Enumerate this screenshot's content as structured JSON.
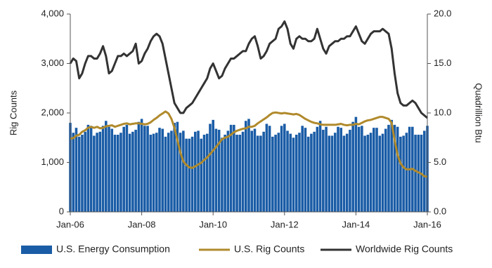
{
  "chart_data": {
    "type": "bar",
    "y_label": "Rig Counts",
    "y2_label": "Quadrillion Btu",
    "categories": [
      "Jan-06",
      null,
      null,
      null,
      null,
      null,
      null,
      null,
      null,
      null,
      null,
      null,
      null,
      null,
      null,
      null,
      null,
      null,
      null,
      null,
      null,
      null,
      null,
      null,
      "Jan-08",
      null,
      null,
      null,
      null,
      null,
      null,
      null,
      null,
      null,
      null,
      null,
      null,
      null,
      null,
      null,
      null,
      null,
      null,
      null,
      null,
      null,
      null,
      null,
      "Jan-10",
      null,
      null,
      null,
      null,
      null,
      null,
      null,
      null,
      null,
      null,
      null,
      null,
      null,
      null,
      null,
      null,
      null,
      null,
      null,
      null,
      null,
      null,
      null,
      "Jan-12",
      null,
      null,
      null,
      null,
      null,
      null,
      null,
      null,
      null,
      null,
      null,
      null,
      null,
      null,
      null,
      null,
      null,
      null,
      null,
      null,
      null,
      null,
      null,
      "Jan-14",
      null,
      null,
      null,
      null,
      null,
      null,
      null,
      null,
      null,
      null,
      null,
      null,
      null,
      null,
      null,
      null,
      null,
      null,
      null,
      null,
      null,
      null,
      null,
      "Jan-16"
    ],
    "series": [
      {
        "name": "U.S. Energy Consumption",
        "type": "bar",
        "axis": "y2",
        "color": "#1a5ca6",
        "values": [
          9.0,
          8.0,
          8.5,
          7.6,
          7.8,
          8.1,
          8.8,
          8.7,
          7.7,
          8.0,
          8.1,
          8.7,
          9.2,
          8.6,
          8.4,
          7.8,
          7.8,
          8.0,
          8.6,
          8.8,
          7.9,
          8.1,
          8.3,
          9.1,
          9.4,
          8.7,
          8.7,
          7.8,
          7.9,
          8.0,
          8.5,
          8.4,
          7.6,
          8.0,
          8.2,
          9.0,
          9.1,
          8.0,
          8.2,
          7.4,
          7.4,
          7.6,
          8.1,
          8.2,
          7.4,
          7.8,
          7.9,
          8.9,
          9.3,
          8.4,
          8.3,
          7.5,
          7.8,
          8.2,
          8.8,
          8.8,
          7.8,
          7.8,
          8.1,
          9.2,
          9.4,
          8.2,
          8.4,
          7.7,
          7.7,
          8.1,
          8.9,
          8.7,
          7.6,
          7.8,
          8.0,
          8.7,
          8.9,
          8.2,
          7.9,
          7.5,
          7.8,
          8.0,
          8.7,
          8.5,
          7.6,
          7.9,
          8.1,
          8.6,
          9.2,
          8.3,
          8.6,
          7.7,
          7.7,
          8.0,
          8.6,
          8.5,
          7.7,
          7.9,
          8.3,
          9.1,
          9.6,
          8.6,
          8.7,
          7.7,
          7.8,
          8.0,
          8.5,
          8.5,
          7.7,
          7.9,
          8.4,
          8.8,
          9.3,
          8.8,
          8.6,
          7.6,
          7.7,
          8.0,
          8.6,
          8.6,
          7.8,
          7.8,
          7.8,
          8.2,
          8.7
        ]
      },
      {
        "name": "U.S. Rig Counts",
        "type": "line",
        "color": "#b08a2c",
        "values": [
          1480,
          1490,
          1540,
          1560,
          1620,
          1650,
          1700,
          1720,
          1700,
          1720,
          1690,
          1700,
          1730,
          1740,
          1750,
          1720,
          1740,
          1760,
          1780,
          1790,
          1770,
          1780,
          1790,
          1790,
          1780,
          1770,
          1780,
          1810,
          1860,
          1900,
          1950,
          1990,
          2030,
          1990,
          1880,
          1700,
          1450,
          1200,
          1020,
          950,
          900,
          890,
          920,
          960,
          990,
          1050,
          1100,
          1170,
          1240,
          1310,
          1390,
          1470,
          1500,
          1520,
          1560,
          1610,
          1640,
          1660,
          1680,
          1690,
          1720,
          1720,
          1740,
          1790,
          1830,
          1870,
          1910,
          1960,
          2000,
          2010,
          2000,
          1990,
          2000,
          1990,
          1980,
          1970,
          1980,
          1960,
          1920,
          1880,
          1850,
          1820,
          1800,
          1790,
          1770,
          1760,
          1760,
          1760,
          1760,
          1760,
          1770,
          1780,
          1760,
          1750,
          1760,
          1760,
          1780,
          1770,
          1800,
          1830,
          1850,
          1860,
          1880,
          1900,
          1920,
          1920,
          1900,
          1880,
          1800,
          1450,
          1150,
          980,
          900,
          860,
          860,
          870,
          830,
          800,
          770,
          720,
          710
        ]
      },
      {
        "name": "Worldwide Rig Counts",
        "type": "line",
        "color": "#333333",
        "values": [
          3000,
          3100,
          3050,
          2700,
          2800,
          3000,
          3150,
          3150,
          3100,
          3100,
          3200,
          3350,
          3150,
          2800,
          2850,
          3000,
          3150,
          3150,
          3200,
          3150,
          3200,
          3250,
          3400,
          3000,
          3050,
          3200,
          3300,
          3450,
          3550,
          3600,
          3550,
          3400,
          3100,
          2800,
          2500,
          2200,
          2100,
          2000,
          2000,
          2100,
          2150,
          2200,
          2300,
          2400,
          2500,
          2600,
          2700,
          2900,
          3000,
          2850,
          2700,
          2750,
          2900,
          3000,
          3100,
          3100,
          3150,
          3200,
          3250,
          3250,
          3400,
          3500,
          3550,
          3350,
          3100,
          3150,
          3250,
          3400,
          3450,
          3500,
          3700,
          3750,
          3850,
          3700,
          3400,
          3300,
          3500,
          3550,
          3500,
          3500,
          3450,
          3450,
          3500,
          3700,
          3500,
          3300,
          3200,
          3350,
          3400,
          3450,
          3450,
          3500,
          3500,
          3550,
          3550,
          3650,
          3750,
          3600,
          3450,
          3400,
          3500,
          3600,
          3650,
          3650,
          3650,
          3700,
          3650,
          3600,
          3300,
          2800,
          2400,
          2200,
          2150,
          2150,
          2200,
          2250,
          2200,
          2100,
          2000,
          1950,
          1900
        ]
      }
    ],
    "ylim": [
      0,
      4000
    ],
    "yticks": [
      0,
      {
        "value": 1000,
        "label": "1,000"
      },
      {
        "value": 2000,
        "label": "2,000"
      },
      {
        "value": 3000,
        "label": "3,000"
      },
      {
        "value": 4000,
        "label": "4,000"
      }
    ],
    "y2lim": [
      0,
      20
    ],
    "y2ticks": [
      {
        "value": 0,
        "label": "0.0"
      },
      {
        "value": 5,
        "label": "5.0"
      },
      {
        "value": 10,
        "label": "10.0"
      },
      {
        "value": 15,
        "label": "15.0"
      },
      {
        "value": 20,
        "label": "20.0"
      }
    ],
    "grid": false,
    "legend": "bottom"
  }
}
